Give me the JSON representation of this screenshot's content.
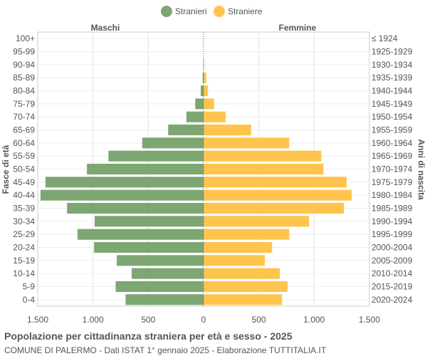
{
  "chart_data": {
    "type": "bar",
    "orientation": "horizontal-pyramid",
    "title": "Popolazione per cittadinanza straniera per età e sesso - 2025",
    "subtitle": "COMUNE DI PALERMO - Dati ISTAT 1° gennaio 2025 - Elaborazione TUTTITALIA.IT",
    "left_header": "Maschi",
    "right_header": "Femmine",
    "ylabel_left": "Fasce di età",
    "ylabel_right": "Anni di nascita",
    "legend_position": "top-center",
    "grid": true,
    "xlim": [
      -1500,
      1500
    ],
    "x_ticks": [
      -1500,
      -1000,
      -500,
      0,
      500,
      1000,
      1500
    ],
    "x_tick_labels": [
      "1.500",
      "1.000",
      "500",
      "0",
      "500",
      "1.000",
      "1.500"
    ],
    "categories": [
      "100+",
      "95-99",
      "90-94",
      "85-89",
      "80-84",
      "75-79",
      "70-74",
      "65-69",
      "60-64",
      "55-59",
      "50-54",
      "45-49",
      "40-44",
      "35-39",
      "30-34",
      "25-29",
      "20-24",
      "15-19",
      "10-14",
      "5-9",
      "0-4"
    ],
    "birth_years": [
      "≤ 1924",
      "1925-1929",
      "1930-1934",
      "1935-1939",
      "1940-1944",
      "1945-1949",
      "1950-1954",
      "1955-1959",
      "1960-1964",
      "1965-1969",
      "1970-1974",
      "1975-1979",
      "1980-1984",
      "1985-1989",
      "1990-1994",
      "1995-1999",
      "2000-2004",
      "2005-2009",
      "2010-2014",
      "2015-2019",
      "2020-2024"
    ],
    "series": [
      {
        "name": "Stranieri",
        "side": "left",
        "color": "#7da672",
        "values": [
          0,
          0,
          2,
          8,
          25,
          75,
          155,
          320,
          555,
          860,
          1055,
          1430,
          1475,
          1235,
          985,
          1140,
          990,
          785,
          650,
          795,
          705
        ]
      },
      {
        "name": "Straniere",
        "side": "right",
        "color": "#ffc44d",
        "values": [
          0,
          0,
          4,
          25,
          40,
          95,
          200,
          430,
          775,
          1065,
          1085,
          1295,
          1340,
          1270,
          955,
          775,
          620,
          555,
          690,
          760,
          710
        ]
      }
    ]
  }
}
